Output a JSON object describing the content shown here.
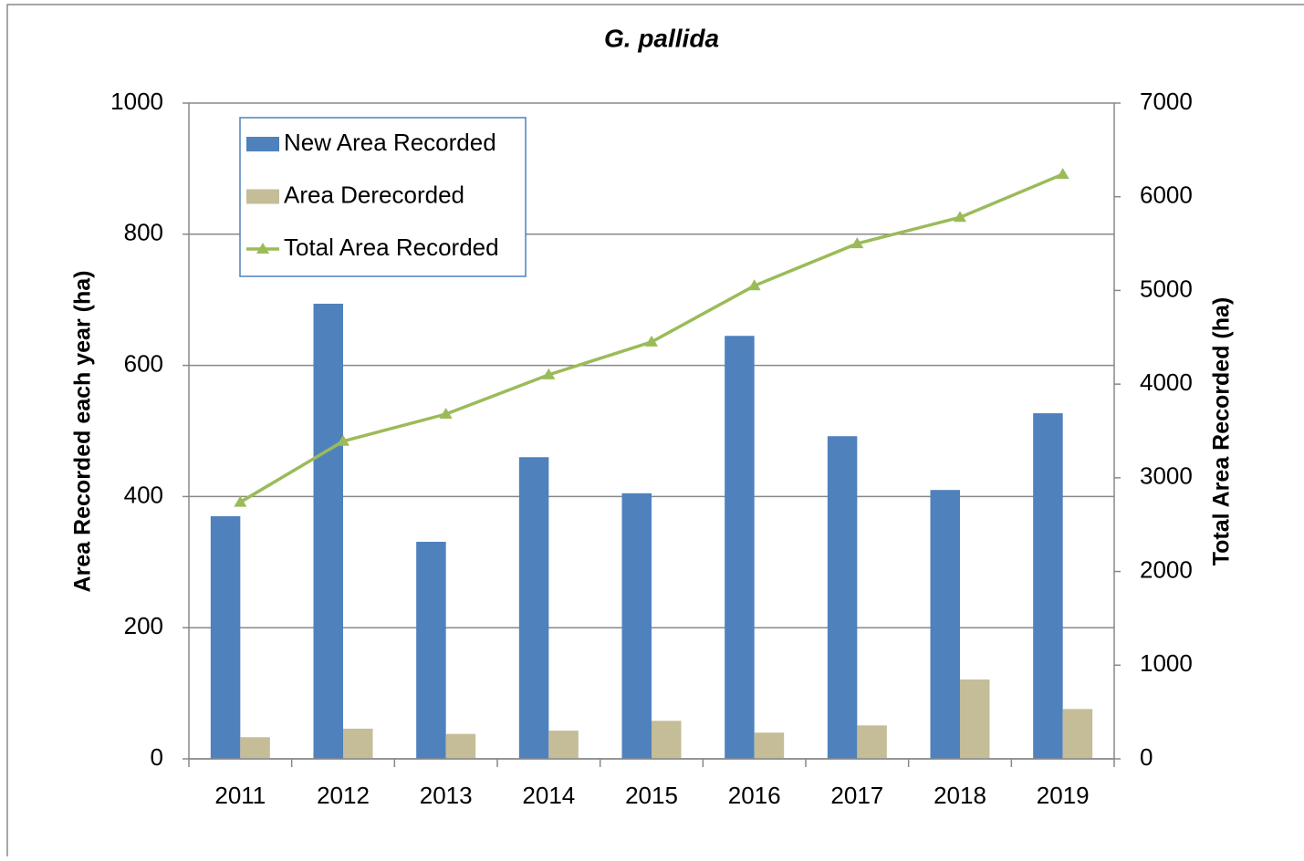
{
  "chart_data": {
    "type": "bar",
    "title": "G. pallida",
    "y_label": "Area Recorded each year (ha)",
    "y2_label": "Total Area Recorded (ha)",
    "categories": [
      "2011",
      "2012",
      "2013",
      "2014",
      "2015",
      "2016",
      "2017",
      "2018",
      "2019"
    ],
    "series": [
      {
        "name": "New Area Recorded",
        "color": "#4f81bd",
        "values": [
          370,
          694,
          331,
          460,
          405,
          645,
          492,
          410,
          527
        ]
      },
      {
        "name": "Area Derecorded",
        "color": "#c4bd97",
        "values": [
          33,
          46,
          38,
          43,
          58,
          40,
          51,
          121,
          76
        ]
      },
      {
        "name": "Total Area Recorded",
        "color": "#9bbb59",
        "type": "line",
        "axis": "y2",
        "values": [
          2740,
          3390,
          3680,
          4100,
          4450,
          5050,
          5500,
          5780,
          6240
        ]
      }
    ],
    "ylim": [
      0,
      1000
    ],
    "yticks": [
      0,
      200,
      400,
      600,
      800,
      1000
    ],
    "y2lim": [
      0,
      7000
    ],
    "y2ticks": [
      0,
      1000,
      2000,
      3000,
      4000,
      5000,
      6000,
      7000
    ],
    "grid": true,
    "legend": "upper left"
  }
}
